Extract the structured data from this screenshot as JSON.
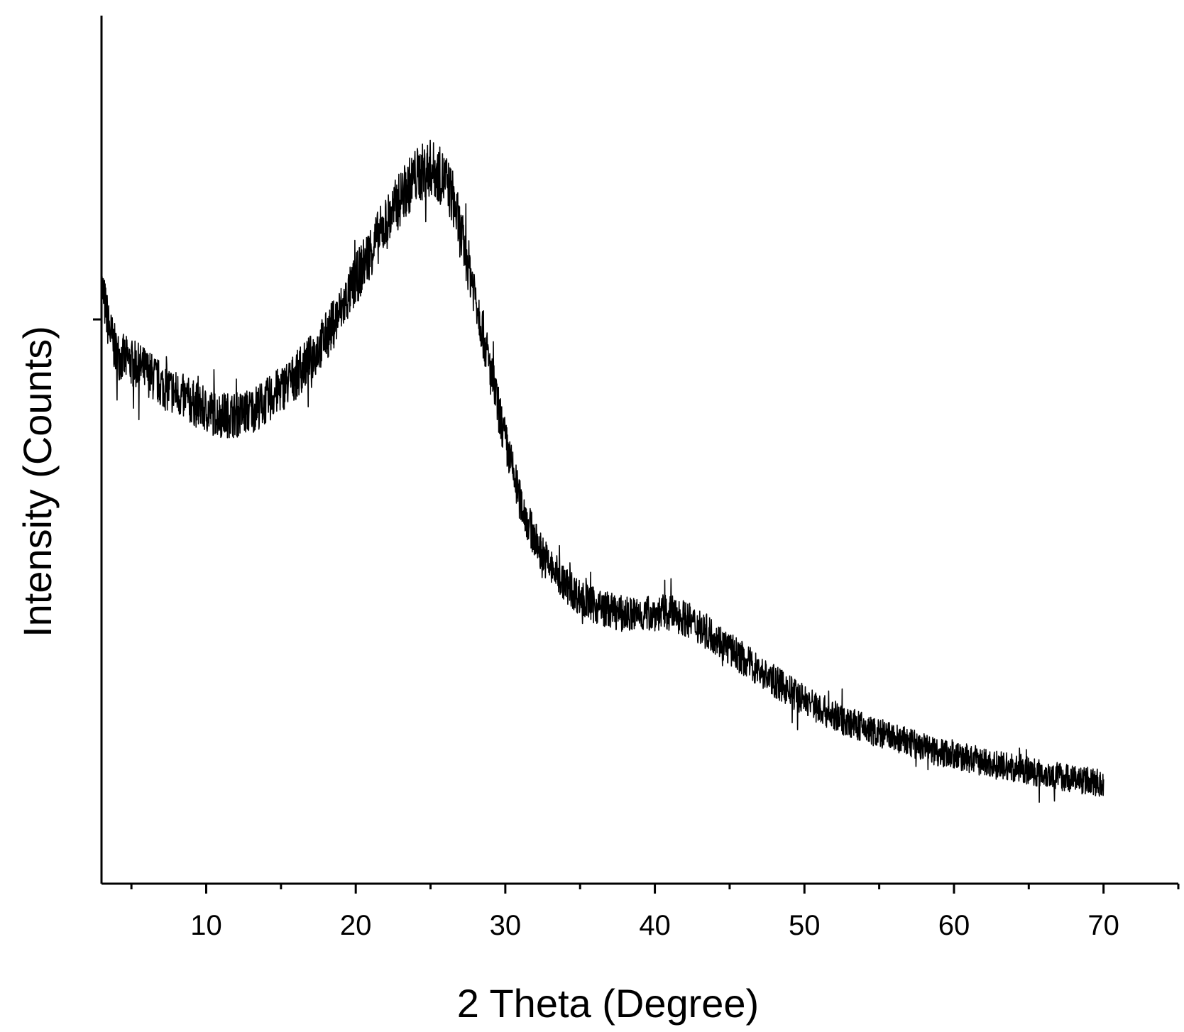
{
  "chart_data": {
    "type": "line",
    "title": "",
    "xlabel": "2 Theta (Degree)",
    "ylabel": "Intensity (Counts)",
    "xlim": [
      3,
      75
    ],
    "ylim": [
      0,
      100
    ],
    "x_ticks": [
      10,
      20,
      30,
      40,
      50,
      60,
      70
    ],
    "x_minor_ticks": [
      5,
      15,
      25,
      35,
      45,
      55,
      65,
      75
    ],
    "y_ticks_unlabeled": [
      65
    ],
    "grid": false,
    "legend": "none",
    "colors": {
      "line": "#000000",
      "axes": "#000000"
    },
    "series": [
      {
        "noise_amplitude": 2.2,
        "x": [
          3,
          3.5,
          4,
          5,
          6,
          7,
          8,
          9,
          10,
          11,
          12,
          13,
          14,
          15,
          16,
          17,
          18,
          19,
          20,
          21,
          22,
          23,
          24,
          25,
          26,
          26.5,
          27,
          28,
          29,
          30,
          31,
          32,
          33,
          34,
          35,
          36,
          37,
          38,
          39,
          40,
          41,
          42,
          43,
          44,
          45,
          46,
          47,
          48,
          49,
          50,
          51,
          52,
          53,
          54,
          55,
          56,
          57,
          58,
          59,
          60,
          61,
          62,
          63,
          64,
          65,
          66,
          67,
          68,
          69,
          70
        ],
        "y": [
          69,
          64,
          61,
          60,
          59,
          57.5,
          56.5,
          55.5,
          54.5,
          54,
          54,
          54.5,
          55.5,
          57,
          58.5,
          60.5,
          63,
          66,
          69.5,
          73,
          76,
          79,
          81.5,
          82.5,
          81,
          79,
          75,
          68,
          59,
          51,
          44,
          39.5,
          36.5,
          34.5,
          33,
          32,
          31.5,
          31,
          31,
          31.2,
          31.2,
          30.6,
          29.5,
          28.5,
          27,
          25.8,
          24.5,
          23.3,
          22.2,
          21.2,
          20.2,
          19.3,
          18.6,
          17.9,
          17.3,
          16.8,
          16.2,
          15.7,
          15.2,
          14.8,
          14.4,
          14,
          13.6,
          13.3,
          13,
          12.7,
          12.4,
          12.1,
          11.8,
          11.5
        ]
      }
    ]
  }
}
